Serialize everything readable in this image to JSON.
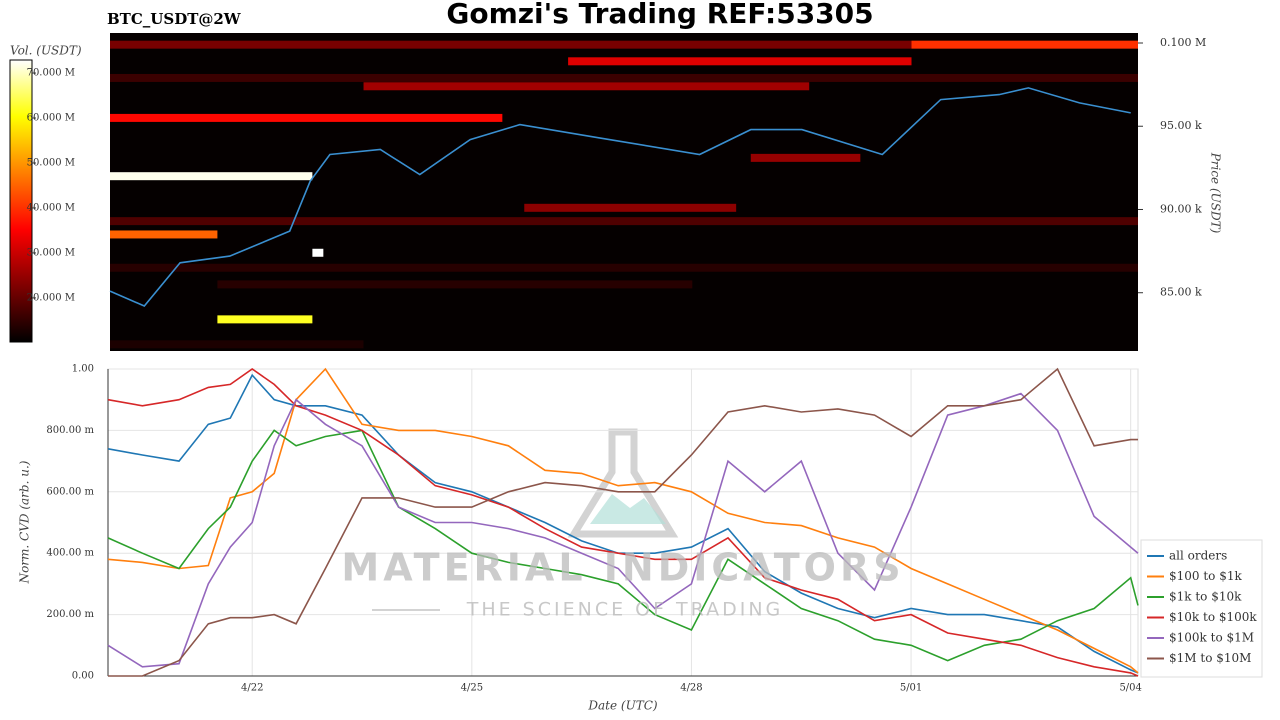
{
  "chart_data": [
    {
      "type": "heatmap",
      "subtitle": "BTC_USDT@2W",
      "title": "Gomzi's Trading REF:53305",
      "colorbar_label": "Vol. (USDT)",
      "y_label": "Price (USDT)",
      "xlim": [
        20.03,
        34.1
      ],
      "ylim": [
        81500,
        100600
      ],
      "yticks": [
        {
          "value": 85000,
          "label": "85.00 k"
        },
        {
          "value": 90000,
          "label": "90.00 k"
        },
        {
          "value": 95000,
          "label": "95.00 k"
        },
        {
          "value": 100000,
          "label": "0.100 M"
        }
      ],
      "clim": [
        10200000,
        72900000
      ],
      "cticks": [
        {
          "value": 20000000,
          "label": "20.000 M"
        },
        {
          "value": 30000000,
          "label": "30.000 M"
        },
        {
          "value": 40000000,
          "label": "40.000 M"
        },
        {
          "value": 50000000,
          "label": "50.000 M"
        },
        {
          "value": 60000000,
          "label": "60.000 M"
        },
        {
          "value": 70000000,
          "label": "70.000 M"
        }
      ],
      "bands": [
        {
          "price": 99900,
          "from": 20.03,
          "to": 31.0,
          "volume": 22000000
        },
        {
          "price": 99900,
          "from": 31.0,
          "to": 34.1,
          "volume": 40000000
        },
        {
          "price": 98900,
          "from": 26.3,
          "to": 31.0,
          "volume": 32000000
        },
        {
          "price": 97900,
          "from": 20.03,
          "to": 34.1,
          "volume": 16000000
        },
        {
          "price": 97400,
          "from": 23.5,
          "to": 29.6,
          "volume": 26000000
        },
        {
          "price": 95500,
          "from": 20.03,
          "to": 25.4,
          "volume": 36000000
        },
        {
          "price": 93100,
          "from": 28.8,
          "to": 30.3,
          "volume": 25000000
        },
        {
          "price": 92000,
          "from": 20.03,
          "to": 22.8,
          "volume": 72000000
        },
        {
          "price": 90100,
          "from": 25.7,
          "to": 28.6,
          "volume": 24000000
        },
        {
          "price": 89300,
          "from": 20.03,
          "to": 34.1,
          "volume": 18000000
        },
        {
          "price": 88500,
          "from": 20.03,
          "to": 21.5,
          "volume": 45000000
        },
        {
          "price": 87400,
          "from": 22.8,
          "to": 22.95,
          "volume": 72900000
        },
        {
          "price": 86500,
          "from": 20.03,
          "to": 34.1,
          "volume": 14000000
        },
        {
          "price": 85500,
          "from": 21.5,
          "to": 28.0,
          "volume": 14000000
        },
        {
          "price": 83400,
          "from": 21.5,
          "to": 22.8,
          "volume": 62000000
        },
        {
          "price": 81900,
          "from": 20.03,
          "to": 23.5,
          "volume": 13000000
        }
      ],
      "x": [
        20.03,
        20.5,
        20.99,
        21.67,
        22.49,
        22.77,
        23.04,
        23.73,
        24.27,
        24.96,
        25.64,
        26.73,
        28.1,
        28.8,
        29.5,
        30.6,
        31.4,
        32.2,
        32.6,
        33.3,
        34.0
      ],
      "series": [
        {
          "color": "#3a8fd0",
          "values": [
            85100,
            84200,
            86800,
            87200,
            88700,
            91700,
            93300,
            93600,
            92100,
            94200,
            95100,
            94300,
            93300,
            94800,
            94800,
            93300,
            96600,
            96900,
            97300,
            96400,
            95800
          ]
        }
      ]
    },
    {
      "type": "line",
      "y_label": "Norm. CVD (arb. u.)",
      "x_label": "Date (UTC)",
      "watermark": "MATERIAL INDICATORS",
      "watermark_sub": "THE SCIENCE OF TRADING",
      "xlim": [
        20.03,
        34.1
      ],
      "ylim": [
        0,
        1
      ],
      "xticks": [
        {
          "value": 22,
          "label": "4/22"
        },
        {
          "value": 25,
          "label": "4/25"
        },
        {
          "value": 28,
          "label": "4/28"
        },
        {
          "value": 31,
          "label": "5/01"
        },
        {
          "value": 34,
          "label": "5/04"
        }
      ],
      "yticks": [
        {
          "value": 0,
          "label": "0.00"
        },
        {
          "value": 0.2,
          "label": "200.00 m"
        },
        {
          "value": 0.4,
          "label": "400.00 m"
        },
        {
          "value": 0.6,
          "label": "600.00 m"
        },
        {
          "value": 0.8,
          "label": "800.00 m"
        },
        {
          "value": 1,
          "label": "1.00"
        }
      ],
      "grid": true,
      "x": [
        20.03,
        20.5,
        21.0,
        21.4,
        21.7,
        22.0,
        22.3,
        22.6,
        23.0,
        23.5,
        24.0,
        24.5,
        25.0,
        25.5,
        26.0,
        26.5,
        27.0,
        27.5,
        28.0,
        28.5,
        29.0,
        29.5,
        30.0,
        30.5,
        31.0,
        31.5,
        32.0,
        32.5,
        33.0,
        33.5,
        34.0,
        34.1
      ],
      "series": [
        {
          "name": "all orders",
          "color": "#1f77b4",
          "values": [
            0.74,
            0.72,
            0.7,
            0.82,
            0.84,
            0.98,
            0.9,
            0.88,
            0.88,
            0.85,
            0.72,
            0.63,
            0.6,
            0.55,
            0.5,
            0.44,
            0.4,
            0.4,
            0.42,
            0.48,
            0.34,
            0.27,
            0.22,
            0.19,
            0.22,
            0.2,
            0.2,
            0.18,
            0.16,
            0.08,
            0.02,
            0.01
          ]
        },
        {
          "name": "$100 to $1k",
          "color": "#ff7f0e",
          "values": [
            0.38,
            0.37,
            0.35,
            0.36,
            0.58,
            0.6,
            0.66,
            0.9,
            1.0,
            0.82,
            0.8,
            0.8,
            0.78,
            0.75,
            0.67,
            0.66,
            0.62,
            0.63,
            0.6,
            0.53,
            0.5,
            0.49,
            0.45,
            0.42,
            0.35,
            0.3,
            0.25,
            0.2,
            0.15,
            0.09,
            0.03,
            0.01
          ]
        },
        {
          "name": "$1k to $10k",
          "color": "#2ca02c",
          "values": [
            0.45,
            0.4,
            0.35,
            0.48,
            0.55,
            0.7,
            0.8,
            0.75,
            0.78,
            0.8,
            0.55,
            0.48,
            0.4,
            0.37,
            0.35,
            0.33,
            0.3,
            0.2,
            0.15,
            0.38,
            0.3,
            0.22,
            0.18,
            0.12,
            0.1,
            0.05,
            0.1,
            0.12,
            0.18,
            0.22,
            0.32,
            0.23
          ]
        },
        {
          "name": "$10k to $100k",
          "color": "#d62728",
          "values": [
            0.9,
            0.88,
            0.9,
            0.94,
            0.95,
            1.0,
            0.95,
            0.88,
            0.85,
            0.8,
            0.72,
            0.62,
            0.59,
            0.55,
            0.48,
            0.42,
            0.4,
            0.38,
            0.38,
            0.45,
            0.32,
            0.28,
            0.25,
            0.18,
            0.2,
            0.14,
            0.12,
            0.1,
            0.06,
            0.03,
            0.01,
            0.0
          ]
        },
        {
          "name": "$100k to $1M",
          "color": "#9467bd",
          "values": [
            0.1,
            0.03,
            0.04,
            0.3,
            0.42,
            0.5,
            0.75,
            0.9,
            0.82,
            0.75,
            0.55,
            0.5,
            0.5,
            0.48,
            0.45,
            0.4,
            0.35,
            0.22,
            0.3,
            0.7,
            0.6,
            0.7,
            0.4,
            0.28,
            0.55,
            0.85,
            0.88,
            0.92,
            0.8,
            0.52,
            0.42,
            0.4
          ]
        },
        {
          "name": "$1M to $10M",
          "color": "#8c564b",
          "values": [
            0.0,
            0.0,
            0.05,
            0.17,
            0.19,
            0.19,
            0.2,
            0.17,
            0.35,
            0.58,
            0.58,
            0.55,
            0.55,
            0.6,
            0.63,
            0.62,
            0.6,
            0.6,
            0.72,
            0.86,
            0.88,
            0.86,
            0.87,
            0.85,
            0.78,
            0.88,
            0.88,
            0.9,
            1.0,
            0.75,
            0.77,
            0.77
          ]
        }
      ]
    }
  ]
}
